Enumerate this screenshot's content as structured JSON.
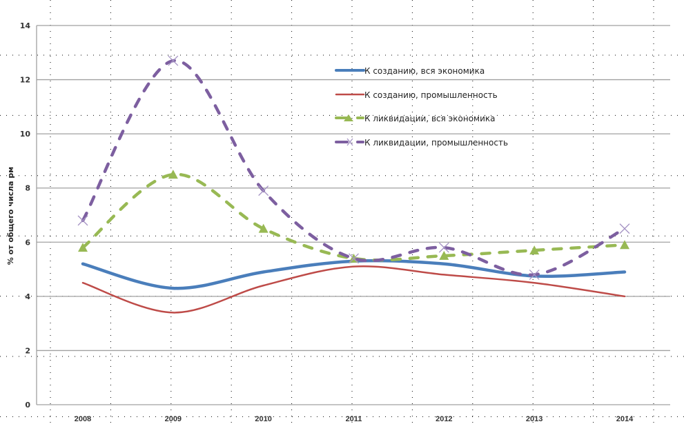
{
  "chart_data": {
    "type": "line",
    "title": "",
    "xlabel": "",
    "ylabel": "% от общего числа рм",
    "ylim": [
      0,
      14
    ],
    "yticks": [
      "0",
      "2",
      "4",
      "6",
      "8",
      "10",
      "12",
      "14"
    ],
    "categories": [
      "2008",
      "2009",
      "2010",
      "2011",
      "2012",
      "2013",
      "2014"
    ],
    "grid": true,
    "legend_position": "top-right",
    "series": [
      {
        "name": "К созданию, вся экономика",
        "color": "#4a7ebb",
        "dash": "solid",
        "marker": "none",
        "values": [
          5.2,
          4.3,
          4.9,
          5.3,
          5.2,
          4.75,
          4.9
        ]
      },
      {
        "name": "К созданию, промышленность",
        "color": "#be4b48",
        "dash": "solid",
        "marker": "none",
        "values": [
          4.5,
          3.4,
          4.4,
          5.1,
          4.8,
          4.5,
          4.0
        ]
      },
      {
        "name": "К ликвидации, вся экономика",
        "color": "#98b954",
        "dash": "dashed",
        "marker": "triangle",
        "values": [
          5.8,
          8.5,
          6.5,
          5.4,
          5.5,
          5.7,
          5.9
        ]
      },
      {
        "name": "К ликвидации, промышленность",
        "color": "#7d5fa0",
        "dash": "dashed",
        "marker": "x",
        "values": [
          6.8,
          12.7,
          7.9,
          5.4,
          5.8,
          4.8,
          6.5
        ]
      }
    ],
    "legend_labels": [
      "К созданию, вся экономика",
      "К созданию, промышленность",
      "К ликвидации, вся экономика",
      "К ликвидации, промышленность"
    ]
  }
}
